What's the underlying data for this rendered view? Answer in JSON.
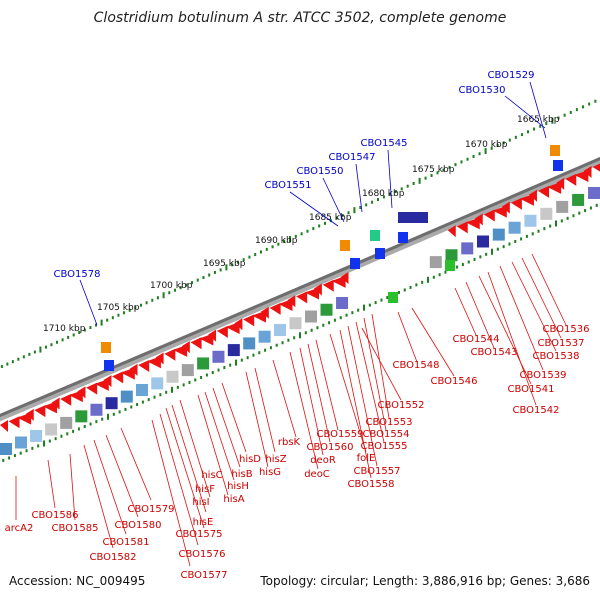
{
  "title": "Clostridium botulinum A str. ATCC 3502, complete genome",
  "accession": "Accession: NC_009495",
  "topology": "Topology: circular; Length: 3,886,916 bp; Genes: 3,686",
  "colors": {
    "forward_gene_label": "#0000cc",
    "reverse_gene_label": "#cc0000",
    "backbone": "#808080",
    "tick": "#1e7d1e",
    "gene_red": "#ee1111",
    "gene_blue": "#1133ee"
  },
  "ruler": [
    {
      "label": "1665 kbp"
    },
    {
      "label": "1670 kbp"
    },
    {
      "label": "1675 kbp"
    },
    {
      "label": "1680 kbp"
    },
    {
      "label": "1685 kbp"
    },
    {
      "label": "1690 kbp"
    },
    {
      "label": "1695 kbp"
    },
    {
      "label": "1700 kbp"
    },
    {
      "label": "1705 kbp"
    },
    {
      "label": "1710 kbp"
    }
  ],
  "forward_gene_labels": [
    "CBO1529",
    "CBO1530",
    "CBO1545",
    "CBO1547",
    "CBO1550",
    "CBO1551",
    "CBO1578"
  ],
  "reverse_gene_labels": [
    "CBO1536",
    "CBO1537",
    "CBO1538",
    "CBO1539",
    "CBO1541",
    "CBO1542",
    "CBO1543",
    "CBO1544",
    "CBO1546",
    "CBO1548",
    "CBO1552",
    "CBO1553",
    "CBO1554",
    "CBO1555",
    "folE",
    "CBO1557",
    "CBO1558",
    "CBO1559",
    "CBO1560",
    "rbsK",
    "deoR",
    "deoC",
    "hisZ",
    "hisG",
    "hisD",
    "hisB",
    "hisH",
    "hisA",
    "hisC",
    "hisF",
    "hisI",
    "hisE",
    "CBO1575",
    "CBO1576",
    "CBO1577",
    "CBO1579",
    "CBO1580",
    "CBO1581",
    "CBO1582",
    "CBO1585",
    "CBO1586",
    "arcA2"
  ]
}
